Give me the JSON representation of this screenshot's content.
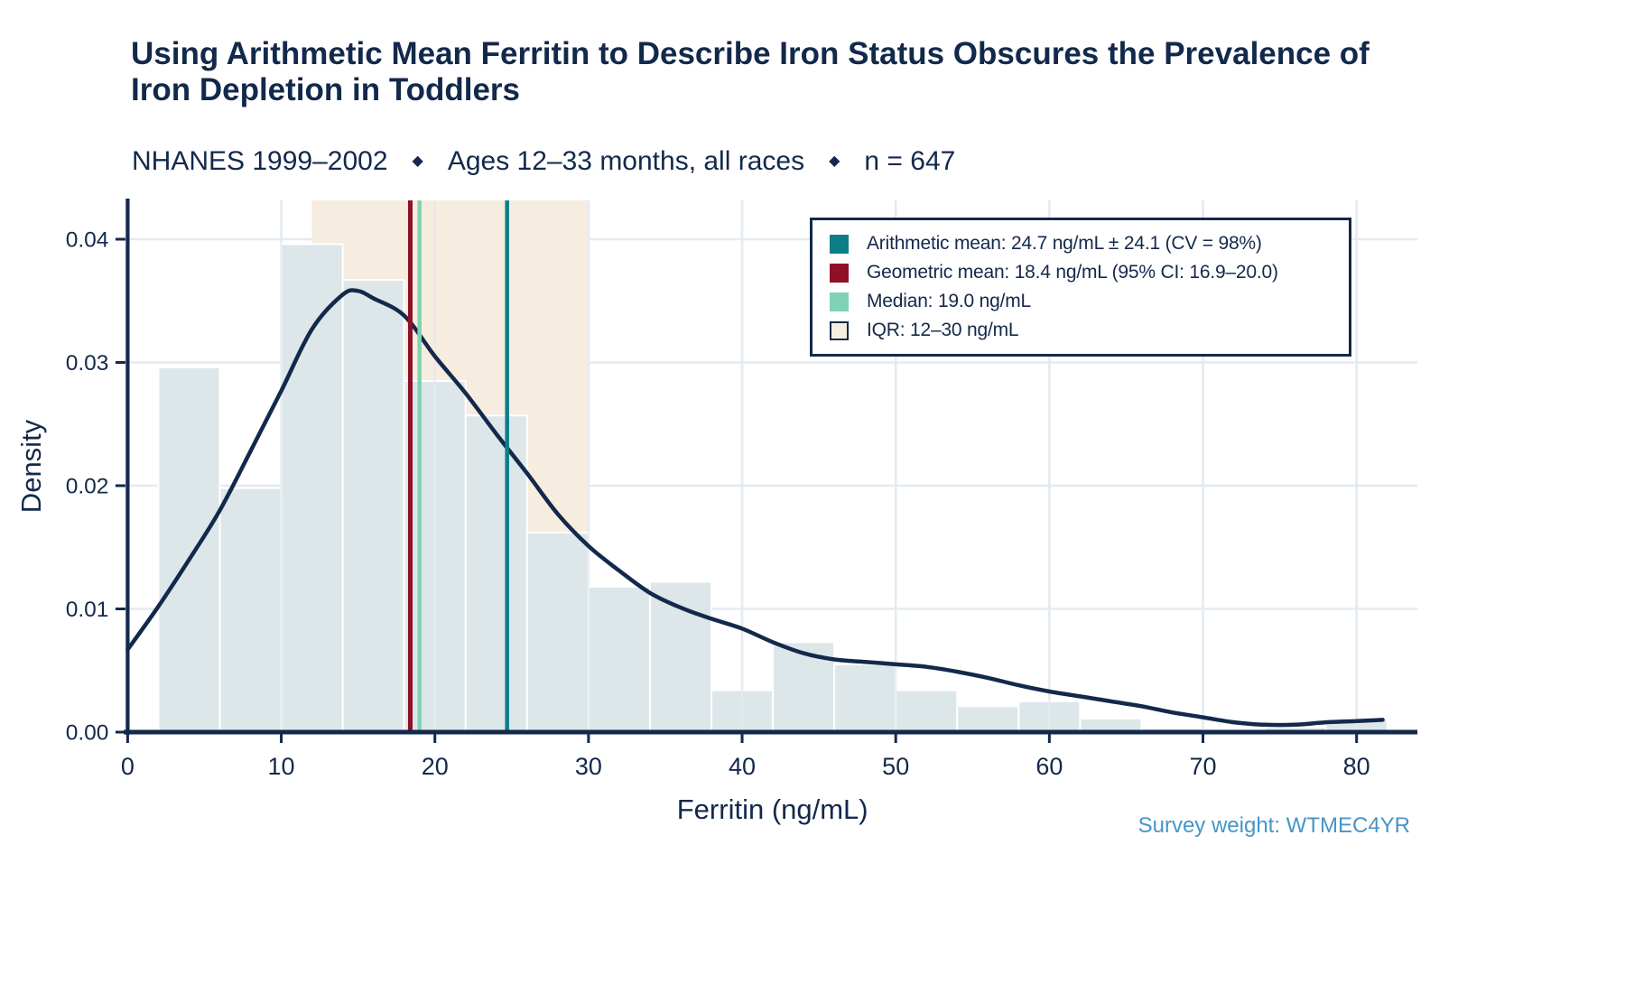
{
  "header": {
    "title": "Using Arithmetic Mean Ferritin to Describe Iron Status Obscures the Prevalence of Iron Depletion in Toddlers",
    "subtitle_parts": [
      "NHANES 1999–2002",
      "Ages 12–33 months, all races",
      "n = 647"
    ],
    "separator": "◆"
  },
  "caption": "Survey weight: WTMEC4YR",
  "colors": {
    "navy": "#13294b",
    "steel_blue": "#4695c8",
    "bar_fill": "#dde7ea",
    "bar_border": "#ffffff",
    "grid": "#e3ebf1",
    "iqr_beige": "#f6ecdf",
    "teal": "#0d7e88",
    "crimson": "#8e1127",
    "mint": "#7fd2b3"
  },
  "legend": {
    "items": [
      {
        "label": "Arithmetic mean: 24.7 ng/mL ± 24.1 (CV = 98%)",
        "swatch": "#0d7e88",
        "swatch_border": ""
      },
      {
        "label": "Geometric mean: 18.4 ng/mL (95% CI: 16.9–20.0)",
        "swatch": "#8e1127",
        "swatch_border": ""
      },
      {
        "label": "Median: 19.0 ng/mL",
        "swatch": "#7fd2b3",
        "swatch_border": ""
      },
      {
        "label": "IQR: 12–30 ng/mL",
        "swatch": "#f6ecdf",
        "swatch_border": "#13294b"
      }
    ]
  },
  "chart_data": {
    "type": "histogram+density",
    "xlabel": "Ferritin (ng/mL)",
    "ylabel": "Density",
    "x_ticks": [
      0,
      10,
      20,
      30,
      40,
      50,
      60,
      70,
      80
    ],
    "y_ticks": [
      0,
      0.01,
      0.02,
      0.03,
      0.04
    ],
    "xlim": [
      0,
      84
    ],
    "ylim": [
      0,
      0.0432
    ],
    "grid": true,
    "legend_position": "top-right",
    "stats": {
      "arithmetic_mean": 24.7,
      "sd": 24.1,
      "cv_percent": 98,
      "geometric_mean": 18.4,
      "geometric_mean_ci95": [
        16.9,
        20.0
      ],
      "median": 19.0,
      "iqr": [
        12,
        30
      ],
      "n": 647
    },
    "iqr_band": {
      "from": 12,
      "to": 30
    },
    "ref_lines": [
      {
        "name": "geometric-mean-line",
        "x": 18.4,
        "color": "#8e1127",
        "width": 5
      },
      {
        "name": "median-line",
        "x": 19.0,
        "color": "#7fd2b3",
        "width": 4.5
      },
      {
        "name": "arithmetic-mean-line",
        "x": 24.7,
        "color": "#0d7e88",
        "width": 4.5
      }
    ],
    "histogram": {
      "bin_edges": [
        2,
        6,
        10,
        14,
        18,
        22,
        26,
        30,
        34,
        38,
        42,
        46,
        50,
        54,
        58,
        62,
        66,
        70,
        74,
        78,
        82
      ],
      "densities": [
        0.0296,
        0.0198,
        0.0396,
        0.0367,
        0.0285,
        0.0257,
        0.0162,
        0.0118,
        0.0122,
        0.0034,
        0.0073,
        0.0055,
        0.0034,
        0.0021,
        0.0025,
        0.0011,
        0.0003,
        0,
        0.0004,
        0.001
      ]
    },
    "density_curve": [
      [
        0,
        0.0067
      ],
      [
        2,
        0.0102
      ],
      [
        4,
        0.014
      ],
      [
        6,
        0.018
      ],
      [
        8,
        0.0228
      ],
      [
        10,
        0.0277
      ],
      [
        12,
        0.0327
      ],
      [
        14,
        0.0355
      ],
      [
        15,
        0.0358
      ],
      [
        16,
        0.0352
      ],
      [
        18,
        0.0338
      ],
      [
        20,
        0.0305
      ],
      [
        22,
        0.0275
      ],
      [
        24,
        0.0242
      ],
      [
        26,
        0.021
      ],
      [
        28,
        0.0177
      ],
      [
        30,
        0.0151
      ],
      [
        32,
        0.0131
      ],
      [
        34,
        0.0113
      ],
      [
        36,
        0.0101
      ],
      [
        38,
        0.0092
      ],
      [
        40,
        0.0084
      ],
      [
        42,
        0.0073
      ],
      [
        44,
        0.0064
      ],
      [
        46,
        0.0059
      ],
      [
        48,
        0.0057
      ],
      [
        50,
        0.0055
      ],
      [
        52,
        0.0053
      ],
      [
        54,
        0.0049
      ],
      [
        56,
        0.0044
      ],
      [
        58,
        0.0038
      ],
      [
        60,
        0.0033
      ],
      [
        62,
        0.0029
      ],
      [
        64,
        0.0025
      ],
      [
        66,
        0.0021
      ],
      [
        68,
        0.0016
      ],
      [
        70,
        0.0012
      ],
      [
        72,
        0.0008
      ],
      [
        74,
        0.0006
      ],
      [
        76,
        0.0006
      ],
      [
        78,
        0.0008
      ],
      [
        80,
        0.0009
      ],
      [
        81.7,
        0.001
      ]
    ]
  }
}
